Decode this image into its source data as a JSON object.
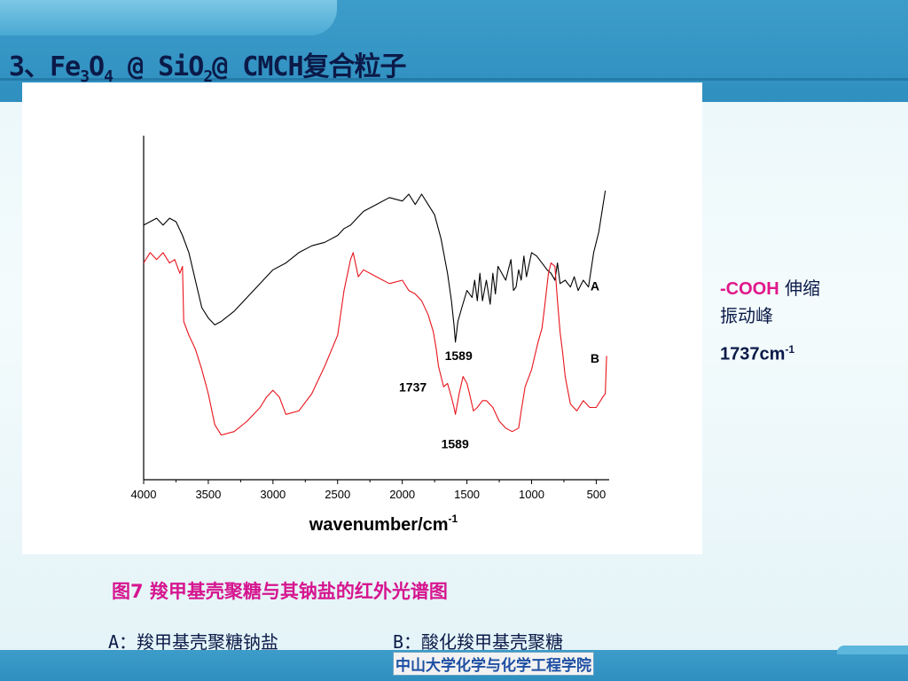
{
  "slide": {
    "title_prefix": "3、Fe",
    "title_sub1": "3",
    "title_mid1": "O",
    "title_sub2": "4",
    "title_mid2": " @ SiO",
    "title_sub3": "2",
    "title_suffix": "@ CMCH复合粒子"
  },
  "side_note": {
    "group_label": "-COOH",
    "group_desc": " 伸缩",
    "line2": "振动峰",
    "value": "1737cm",
    "value_sup": "-1"
  },
  "caption": "图7 羧甲基壳聚糖与其钠盐的红外光谱图",
  "legend": {
    "a": "A：羧甲基壳聚糖钠盐",
    "b": "B：酸化羧甲基壳聚糖"
  },
  "footer": "中山大学化学与化学工程学院",
  "colors": {
    "series_a": "#000000",
    "series_b": "#e8141c",
    "accent": "#e0178b"
  },
  "chart_data": {
    "type": "line",
    "xlabel": "wavenumber/cm",
    "xlabel_sup": "-1",
    "ylabel": "",
    "xlim": [
      4000,
      400
    ],
    "ylim": [
      0,
      100
    ],
    "x_reversed": true,
    "x_ticks": [
      4000,
      3500,
      3000,
      2500,
      2000,
      1500,
      1000,
      500
    ],
    "y_ticks_shown": false,
    "grid": false,
    "series": [
      {
        "name": "A",
        "color": "#000000",
        "x": [
          4000,
          3950,
          3900,
          3850,
          3800,
          3750,
          3700,
          3650,
          3600,
          3550,
          3500,
          3450,
          3400,
          3300,
          3200,
          3100,
          3000,
          2900,
          2800,
          2700,
          2600,
          2500,
          2450,
          2400,
          2350,
          2300,
          2200,
          2100,
          2000,
          1950,
          1900,
          1850,
          1800,
          1750,
          1700,
          1650,
          1620,
          1600,
          1589,
          1570,
          1540,
          1500,
          1460,
          1440,
          1420,
          1400,
          1380,
          1350,
          1320,
          1300,
          1280,
          1260,
          1200,
          1160,
          1140,
          1120,
          1100,
          1080,
          1060,
          1040,
          1000,
          960,
          920,
          880,
          850,
          820,
          800,
          780,
          740,
          700,
          670,
          640,
          600,
          560,
          520,
          480,
          430
        ],
        "y": [
          74,
          75,
          76,
          74,
          76,
          75,
          71,
          66,
          58,
          50,
          47,
          45,
          46,
          49,
          53,
          57,
          61,
          63,
          66,
          68,
          69,
          71,
          73,
          74,
          76,
          78,
          80,
          82,
          81,
          83,
          80,
          83,
          80,
          77,
          70,
          60,
          52,
          45,
          40,
          46,
          50,
          55,
          53,
          58,
          52,
          60,
          52,
          58,
          51,
          60,
          54,
          62,
          58,
          64,
          55,
          56,
          61,
          58,
          65,
          59,
          66,
          65,
          63,
          61,
          60,
          58,
          63,
          57,
          58,
          56,
          59,
          55,
          58,
          56,
          66,
          72,
          84
        ]
      },
      {
        "name": "B",
        "color": "#e8141c",
        "x": [
          4000,
          3950,
          3900,
          3850,
          3800,
          3760,
          3720,
          3700,
          3690,
          3650,
          3600,
          3550,
          3500,
          3450,
          3400,
          3300,
          3200,
          3100,
          3050,
          3000,
          2950,
          2900,
          2800,
          2700,
          2600,
          2500,
          2450,
          2400,
          2380,
          2340,
          2300,
          2200,
          2100,
          2000,
          1950,
          1900,
          1850,
          1800,
          1760,
          1737,
          1720,
          1700,
          1680,
          1650,
          1620,
          1600,
          1589,
          1560,
          1530,
          1500,
          1480,
          1450,
          1420,
          1380,
          1350,
          1300,
          1250,
          1200,
          1150,
          1100,
          1080,
          1050,
          1000,
          950,
          920,
          900,
          870,
          850,
          820,
          800,
          780,
          760,
          740,
          720,
          700,
          650,
          600,
          550,
          500,
          450,
          430,
          420
        ],
        "y": [
          63,
          66,
          64,
          66,
          63,
          64,
          60,
          62,
          46,
          42,
          38,
          32,
          25,
          16,
          13,
          14,
          17,
          21,
          24,
          26,
          24,
          19,
          20,
          25,
          33,
          42,
          55,
          64,
          66,
          59,
          61,
          59,
          57,
          58,
          55,
          54,
          52,
          48,
          43,
          38,
          33,
          30,
          27,
          28,
          24,
          21,
          19,
          25,
          30,
          28,
          25,
          20,
          21,
          23,
          23,
          21,
          17,
          15,
          14,
          15,
          20,
          27,
          32,
          40,
          44,
          50,
          60,
          63,
          62,
          52,
          43,
          37,
          30,
          26,
          22,
          20,
          23,
          21,
          21,
          24,
          25,
          36
        ]
      }
    ],
    "annotations": [
      {
        "text": "A",
        "x": 600,
        "y": 56
      },
      {
        "text": "B",
        "x": 600,
        "y": 35
      },
      {
        "text": "1589",
        "x": 1589,
        "y": 40
      },
      {
        "text": "1737",
        "x": 1737,
        "y": 28
      },
      {
        "text": "1589",
        "x": 1589,
        "y": 14
      }
    ]
  }
}
